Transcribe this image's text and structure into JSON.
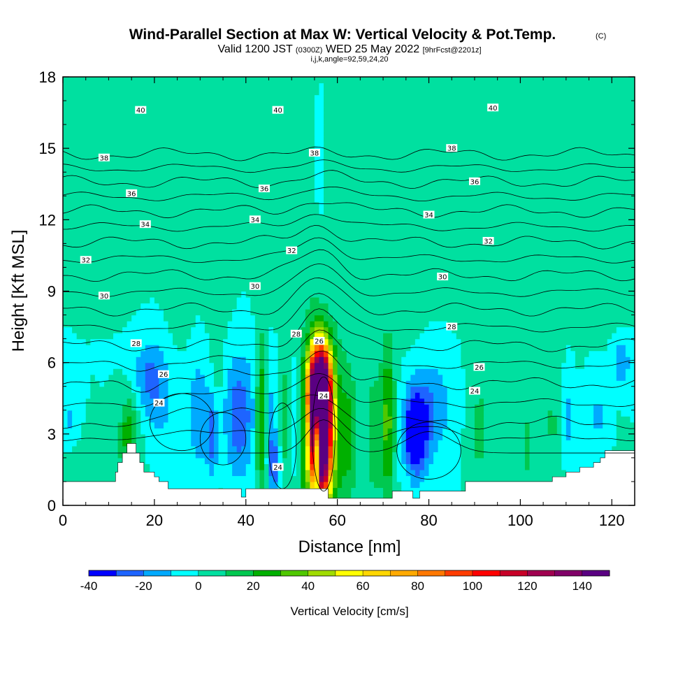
{
  "title": "Wind-Parallel Section at Max W: Vertical Velocity & Pot.Temp.",
  "title_mark": "(C)",
  "subtitle": {
    "part1": "Valid 1200 JST ",
    "part2": "(0300Z)",
    "part3": " WED 25 May 2022 ",
    "part4": "[9hrFcst@2201z]"
  },
  "subtitle2": "i,j,k,angle=92,59,24,20",
  "chart_data": {
    "type": "heatmap",
    "xlabel": "Distance [nm]",
    "ylabel": "Height [Kft MSL]",
    "xlim": [
      0,
      125
    ],
    "ylim": [
      0,
      18
    ],
    "x_ticks": [
      0,
      20,
      40,
      60,
      80,
      100,
      120
    ],
    "y_ticks": [
      0,
      3,
      6,
      9,
      12,
      15,
      18
    ],
    "colorbar": {
      "label": "Vertical Velocity [cm/s]",
      "min": -40,
      "max": 150,
      "step": 10,
      "tick_values": [
        -40,
        -20,
        0,
        20,
        40,
        60,
        80,
        100,
        120,
        140
      ],
      "colors": [
        "#0000ff",
        "#1e64ff",
        "#00aaff",
        "#00ffff",
        "#00e0a0",
        "#00c850",
        "#00b000",
        "#50c800",
        "#a0dc00",
        "#ffff00",
        "#ffd700",
        "#ffaa00",
        "#ff7800",
        "#ff3c00",
        "#ff0000",
        "#c80028",
        "#a00050",
        "#800068",
        "#5a0082"
      ]
    },
    "background_value": 0,
    "velocity_features": [
      {
        "x": 56.5,
        "y": 3.2,
        "sx": 1.4,
        "sy": 1.7,
        "w": 150
      },
      {
        "x": 55.8,
        "y": 4.8,
        "sx": 1.6,
        "sy": 1.2,
        "w": 110
      },
      {
        "x": 56.0,
        "y": 1.6,
        "sx": 2.0,
        "sy": 1.2,
        "w": 40
      },
      {
        "x": 56.5,
        "y": 5.4,
        "sx": 1.8,
        "sy": 1.4,
        "w": 45
      },
      {
        "x": 56.5,
        "y": 3.0,
        "sx": 3.8,
        "sy": 2.6,
        "w": 35
      },
      {
        "x": 43.5,
        "y": 3.5,
        "sx": 0.9,
        "sy": 2.3,
        "w": 42
      },
      {
        "x": 48.5,
        "y": 3.5,
        "sx": 1.0,
        "sy": 1.8,
        "w": 22
      },
      {
        "x": 71.0,
        "y": 3.5,
        "sx": 1.1,
        "sy": 2.4,
        "w": 34
      },
      {
        "x": 68.0,
        "y": 3.0,
        "sx": 1.0,
        "sy": 2.0,
        "w": 18
      },
      {
        "x": 62.5,
        "y": 3.0,
        "sx": 1.2,
        "sy": 2.0,
        "w": 14
      },
      {
        "x": 33.5,
        "y": 3.5,
        "sx": 1.0,
        "sy": 1.8,
        "w": 16
      },
      {
        "x": 14.5,
        "y": 3.1,
        "sx": 1.5,
        "sy": 1.1,
        "w": 26
      },
      {
        "x": 101.5,
        "y": 2.6,
        "sx": 0.8,
        "sy": 1.0,
        "w": 16
      },
      {
        "x": 91.0,
        "y": 3.0,
        "sx": 1.5,
        "sy": 1.8,
        "w": 12
      },
      {
        "x": 107.0,
        "y": 3.3,
        "sx": 2.0,
        "sy": 1.2,
        "w": 10
      },
      {
        "x": 38.5,
        "y": 3.8,
        "sx": 2.5,
        "sy": 1.8,
        "w": -28
      },
      {
        "x": 33.0,
        "y": 3.0,
        "sx": 0.8,
        "sy": 1.2,
        "w": -35
      },
      {
        "x": 30.0,
        "y": 3.8,
        "sx": 2.0,
        "sy": 1.8,
        "w": -18
      },
      {
        "x": 45.0,
        "y": 3.2,
        "sx": 1.3,
        "sy": 1.8,
        "w": -20
      },
      {
        "x": 50.5,
        "y": 3.5,
        "sx": 1.4,
        "sy": 1.8,
        "w": -22
      },
      {
        "x": 55.8,
        "y": 2.9,
        "sx": 0.25,
        "sy": 1.4,
        "w": -260
      },
      {
        "x": 46.5,
        "y": 1.6,
        "sx": 1.0,
        "sy": 0.9,
        "w": -22
      },
      {
        "x": 77.0,
        "y": 3.0,
        "sx": 1.5,
        "sy": 1.1,
        "w": -40
      },
      {
        "x": 78.0,
        "y": 3.6,
        "sx": 2.5,
        "sy": 1.6,
        "w": -22
      },
      {
        "x": 82.0,
        "y": 4.2,
        "sx": 2.5,
        "sy": 1.4,
        "w": -12
      },
      {
        "x": 19.0,
        "y": 5.6,
        "sx": 2.5,
        "sy": 1.0,
        "w": -18
      },
      {
        "x": 21.0,
        "y": 4.2,
        "sx": 3.0,
        "sy": 1.2,
        "w": -12
      },
      {
        "x": 110.5,
        "y": 3.6,
        "sx": 0.8,
        "sy": 1.2,
        "w": -16
      },
      {
        "x": 117.0,
        "y": 3.8,
        "sx": 1.5,
        "sy": 1.0,
        "w": -12
      },
      {
        "x": 122.0,
        "y": 6.0,
        "sx": 1.6,
        "sy": 0.8,
        "w": -18
      },
      {
        "x": 1.5,
        "y": 3.5,
        "sx": 1.2,
        "sy": 0.7,
        "w": -12
      },
      {
        "x": 8.0,
        "y": 1.8,
        "sx": 5.0,
        "sy": 0.8,
        "w": 6
      },
      {
        "x": 15.0,
        "y": 15.0,
        "sx": 2.0,
        "sy": 3.0,
        "w": 8
      },
      {
        "x": 6.0,
        "y": 16.5,
        "sx": 2.0,
        "sy": 1.8,
        "w": 8
      },
      {
        "x": 26.0,
        "y": 13.5,
        "sx": 2.2,
        "sy": 4.0,
        "w": 8
      },
      {
        "x": 34.0,
        "y": 12.0,
        "sx": 2.0,
        "sy": 4.5,
        "w": 7
      },
      {
        "x": 44.0,
        "y": 15.0,
        "sx": 2.5,
        "sy": 3.0,
        "w": 8
      },
      {
        "x": 53.5,
        "y": 11.5,
        "sx": 2.0,
        "sy": 4.0,
        "w": 7
      },
      {
        "x": 62.0,
        "y": 14.0,
        "sx": 2.0,
        "sy": 3.5,
        "w": 7
      },
      {
        "x": 76.0,
        "y": 12.0,
        "sx": 2.5,
        "sy": 4.0,
        "w": 8
      },
      {
        "x": 84.0,
        "y": 14.5,
        "sx": 2.5,
        "sy": 3.0,
        "w": 7
      },
      {
        "x": 92.0,
        "y": 10.0,
        "sx": 2.0,
        "sy": 3.5,
        "w": 7
      },
      {
        "x": 99.0,
        "y": 15.5,
        "sx": 2.5,
        "sy": 2.5,
        "w": 8
      },
      {
        "x": 106.0,
        "y": 11.0,
        "sx": 2.0,
        "sy": 4.0,
        "w": 7
      },
      {
        "x": 112.0,
        "y": 14.5,
        "sx": 2.5,
        "sy": 3.0,
        "w": 7
      },
      {
        "x": 120.5,
        "y": 12.5,
        "sx": 1.8,
        "sy": 4.0,
        "w": 8
      },
      {
        "x": 124.0,
        "y": 10.5,
        "sx": 1.2,
        "sy": 1.5,
        "w": 8
      },
      {
        "x": 56.0,
        "y": 14.5,
        "sx": 0.5,
        "sy": 1.5,
        "w": -14
      }
    ],
    "terrain": [
      [
        0,
        1.0
      ],
      [
        11.5,
        1.0
      ],
      [
        11.5,
        1.4
      ],
      [
        12,
        1.4
      ],
      [
        12,
        1.8
      ],
      [
        13,
        1.8
      ],
      [
        13,
        2.2
      ],
      [
        14,
        2.2
      ],
      [
        14,
        2.6
      ],
      [
        16,
        2.6
      ],
      [
        16,
        2.2
      ],
      [
        16.8,
        2.2
      ],
      [
        16.8,
        1.8
      ],
      [
        17.7,
        1.8
      ],
      [
        17.7,
        1.4
      ],
      [
        20,
        1.4
      ],
      [
        20,
        1.2
      ],
      [
        21,
        1.2
      ],
      [
        21,
        1.0
      ],
      [
        23,
        1.0
      ],
      [
        23,
        0.7
      ],
      [
        39,
        0.7
      ],
      [
        39,
        0.35
      ],
      [
        40,
        0.35
      ],
      [
        40,
        0.7
      ],
      [
        58,
        0.7
      ],
      [
        58,
        0.3
      ],
      [
        72,
        0.3
      ],
      [
        72,
        0.6
      ],
      [
        76.5,
        0.6
      ],
      [
        76.5,
        0.3
      ],
      [
        78,
        0.3
      ],
      [
        78,
        0.6
      ],
      [
        88,
        0.6
      ],
      [
        88,
        1.0
      ],
      [
        107,
        1.0
      ],
      [
        107,
        1.2
      ],
      [
        110,
        1.2
      ],
      [
        110,
        1.4
      ],
      [
        113,
        1.4
      ],
      [
        113,
        1.6
      ],
      [
        116,
        1.6
      ],
      [
        116,
        1.8
      ],
      [
        117.5,
        1.8
      ],
      [
        117.5,
        2.0
      ],
      [
        118.5,
        2.0
      ],
      [
        118.5,
        2.3
      ],
      [
        125,
        2.3
      ]
    ],
    "theta_levels": [
      22,
      24,
      26,
      28,
      30,
      32,
      34,
      36,
      38,
      40
    ],
    "contour_labels": [
      {
        "text": "40",
        "x": 17,
        "y": 16.6
      },
      {
        "text": "40",
        "x": 47,
        "y": 16.6
      },
      {
        "text": "40",
        "x": 94,
        "y": 16.7
      },
      {
        "text": "38",
        "x": 9,
        "y": 14.6
      },
      {
        "text": "38",
        "x": 55,
        "y": 14.8
      },
      {
        "text": "38",
        "x": 85,
        "y": 15.0
      },
      {
        "text": "36",
        "x": 15,
        "y": 13.1
      },
      {
        "text": "36",
        "x": 44,
        "y": 13.3
      },
      {
        "text": "36",
        "x": 90,
        "y": 13.6
      },
      {
        "text": "34",
        "x": 18,
        "y": 11.8
      },
      {
        "text": "34",
        "x": 42,
        "y": 12.0
      },
      {
        "text": "34",
        "x": 80,
        "y": 12.2
      },
      {
        "text": "32",
        "x": 5,
        "y": 10.3
      },
      {
        "text": "32",
        "x": 50,
        "y": 10.7
      },
      {
        "text": "32",
        "x": 93,
        "y": 11.1
      },
      {
        "text": "30",
        "x": 9,
        "y": 8.8
      },
      {
        "text": "30",
        "x": 42,
        "y": 9.2
      },
      {
        "text": "30",
        "x": 83,
        "y": 9.6
      },
      {
        "text": "28",
        "x": 16,
        "y": 6.8
      },
      {
        "text": "28",
        "x": 51,
        "y": 7.2
      },
      {
        "text": "28",
        "x": 85,
        "y": 7.5
      },
      {
        "text": "26",
        "x": 56,
        "y": 6.9
      },
      {
        "text": "26",
        "x": 22,
        "y": 5.5
      },
      {
        "text": "26",
        "x": 91,
        "y": 5.8
      },
      {
        "text": "24",
        "x": 21,
        "y": 4.3
      },
      {
        "text": "24",
        "x": 57,
        "y": 4.6
      },
      {
        "text": "24",
        "x": 90,
        "y": 4.8
      },
      {
        "text": "24",
        "x": 47,
        "y": 1.6
      }
    ]
  }
}
